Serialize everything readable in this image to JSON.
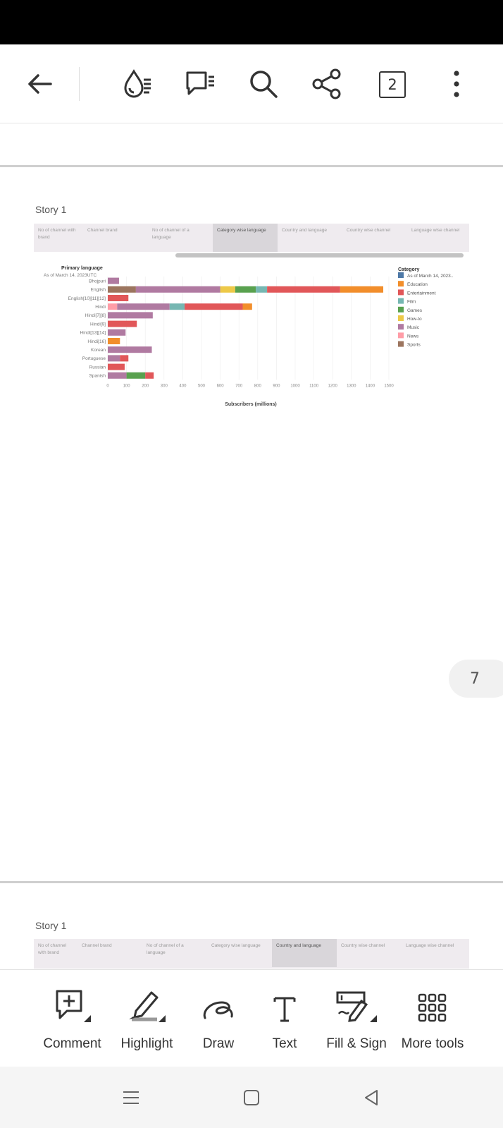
{
  "toolbar": {
    "back_icon": "arrow-left-icon",
    "icons": [
      "liquid-mode-icon",
      "comments-list-icon",
      "search-icon",
      "share-icon"
    ],
    "page_count": "2",
    "more_icon": "more-vertical-icon"
  },
  "pages": [
    {
      "story_title": "Story 1",
      "tabs": [
        {
          "label": "No of channel with brand"
        },
        {
          "label": "Channel brand"
        },
        {
          "label": "No of channel of a language"
        },
        {
          "label": "Category wise language"
        },
        {
          "label": "Country and language"
        },
        {
          "label": "Country wise channel"
        },
        {
          "label": "Language wise channel"
        }
      ]
    },
    {
      "story_title": "Story 1",
      "tabs": [
        {
          "label": "No of channel with brand"
        },
        {
          "label": "Channel brand"
        },
        {
          "label": "No of channel of a language"
        },
        {
          "label": "Category wise language"
        },
        {
          "label": "Country and language"
        },
        {
          "label": "Country wise channel"
        },
        {
          "label": "Language wise channel"
        }
      ]
    }
  ],
  "page_indicator": "7",
  "chart_data": {
    "type": "bar",
    "orientation": "horizontal",
    "stacked": true,
    "row_header": "Primary language",
    "row_subheader": "As of March 14, 2023UTC",
    "categories": [
      "Bhojpuri",
      "English",
      "English[10][11][12]",
      "Hindi",
      "Hindi[7][8]",
      "Hindi[9]",
      "Hindi[13][14]",
      "Hindi[16]",
      "Korean",
      "Portuguese",
      "Russian",
      "Spanish"
    ],
    "xlabel": "Subscribers (millions)",
    "xlim": [
      0,
      1500
    ],
    "xticks": [
      "0",
      "100",
      "200",
      "300",
      "400",
      "500",
      "600",
      "700",
      "800",
      "900",
      "1000",
      "1100",
      "1200",
      "1300",
      "1400",
      "1500"
    ],
    "legend_title": "Category",
    "legend_position": "top-right",
    "series": [
      {
        "name": "As of March 14, 2023..",
        "color": "#4e79a7",
        "values": [
          0,
          0,
          0,
          0,
          0,
          0,
          0,
          0,
          0,
          0,
          0,
          0
        ]
      },
      {
        "name": "Education",
        "color": "#f28e2b",
        "values": [
          0,
          230,
          0,
          50,
          0,
          0,
          0,
          65,
          0,
          0,
          0,
          0
        ]
      },
      {
        "name": "Entertainment",
        "color": "#e15759",
        "values": [
          0,
          390,
          110,
          310,
          0,
          155,
          0,
          0,
          0,
          45,
          90,
          45
        ]
      },
      {
        "name": "Film",
        "color": "#76b7b2",
        "values": [
          0,
          60,
          0,
          80,
          0,
          0,
          0,
          0,
          0,
          0,
          0,
          0
        ]
      },
      {
        "name": "Games",
        "color": "#59a14f",
        "values": [
          0,
          110,
          0,
          0,
          0,
          0,
          0,
          0,
          0,
          0,
          0,
          100
        ]
      },
      {
        "name": "How-to",
        "color": "#edc948",
        "values": [
          0,
          80,
          0,
          0,
          0,
          0,
          0,
          0,
          0,
          0,
          0,
          0
        ]
      },
      {
        "name": "Music",
        "color": "#b07aa1",
        "values": [
          60,
          450,
          0,
          280,
          240,
          0,
          95,
          0,
          235,
          65,
          0,
          100
        ]
      },
      {
        "name": "News",
        "color": "#ff9da7",
        "values": [
          0,
          0,
          0,
          50,
          0,
          0,
          0,
          0,
          0,
          0,
          0,
          0
        ]
      },
      {
        "name": "Sports",
        "color": "#9c755f",
        "values": [
          0,
          150,
          0,
          0,
          0,
          0,
          0,
          0,
          0,
          0,
          0,
          0
        ]
      }
    ],
    "stack_order": [
      "Sports",
      "News",
      "Music",
      "How-to",
      "Games",
      "Film",
      "Entertainment",
      "Education",
      "As of March 14, 2023.."
    ]
  },
  "bottom_tools": [
    {
      "label": "Comment",
      "icon": "comment-add-icon"
    },
    {
      "label": "Highlight",
      "icon": "highlighter-icon"
    },
    {
      "label": "Draw",
      "icon": "draw-squiggle-icon"
    },
    {
      "label": "Text",
      "icon": "text-t-icon"
    },
    {
      "label": "Fill & Sign",
      "icon": "fill-sign-icon"
    },
    {
      "label": "More tools",
      "icon": "grid-dots-icon"
    }
  ],
  "nav": [
    "recent-apps-icon",
    "home-icon",
    "back-triangle-icon"
  ]
}
